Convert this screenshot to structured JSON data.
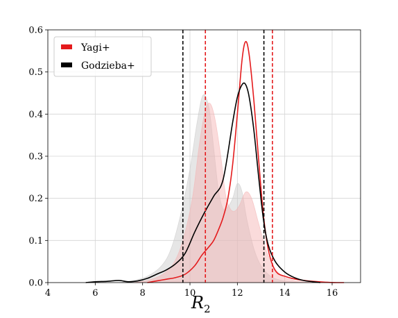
{
  "chart_data": {
    "type": "area",
    "title": "",
    "xlabel": "R",
    "xlabel_subscript": "2",
    "ylabel": "",
    "xlim": [
      4,
      17.2
    ],
    "ylim": [
      0,
      0.6
    ],
    "xticks": [
      4,
      6,
      8,
      10,
      12,
      14,
      16
    ],
    "yticks": [
      0.0,
      0.1,
      0.2,
      0.3,
      0.4,
      0.5,
      0.6
    ],
    "xtick_labels": [
      "4",
      "6",
      "8",
      "10",
      "12",
      "14",
      "16"
    ],
    "ytick_labels": [
      "0.0",
      "0.1",
      "0.2",
      "0.3",
      "0.4",
      "0.5",
      "0.6"
    ],
    "grid": true,
    "legend_position": "top-left",
    "series": [
      {
        "name": "Yagi+",
        "color": "#e41a1c",
        "style": "line",
        "x": [
          8.2,
          8.6,
          9.0,
          9.4,
          9.8,
          10.2,
          10.5,
          10.8,
          11.0,
          11.2,
          11.4,
          11.6,
          11.8,
          12.0,
          12.2,
          12.35,
          12.5,
          12.7,
          12.9,
          13.1,
          13.3,
          13.5,
          13.7,
          14.0,
          14.3,
          14.7,
          15.2,
          15.7,
          16.2,
          16.5
        ],
        "y": [
          0.0,
          0.004,
          0.008,
          0.012,
          0.02,
          0.04,
          0.065,
          0.085,
          0.1,
          0.125,
          0.155,
          0.2,
          0.28,
          0.4,
          0.53,
          0.572,
          0.54,
          0.43,
          0.29,
          0.16,
          0.08,
          0.04,
          0.022,
          0.015,
          0.01,
          0.006,
          0.003,
          0.001,
          0.0,
          0.0
        ]
      },
      {
        "name": "Godzieba+",
        "color": "#000000",
        "style": "line",
        "x": [
          5.6,
          6.0,
          6.5,
          7.0,
          7.4,
          7.8,
          8.2,
          8.6,
          9.0,
          9.4,
          9.8,
          10.2,
          10.6,
          11.0,
          11.4,
          11.8,
          12.0,
          12.2,
          12.35,
          12.5,
          12.7,
          12.9,
          13.1,
          13.3,
          13.6,
          14.0,
          14.4,
          14.8,
          15.2,
          15.5
        ],
        "y": [
          0.0,
          0.002,
          0.003,
          0.005,
          0.002,
          0.004,
          0.01,
          0.02,
          0.03,
          0.045,
          0.07,
          0.12,
          0.165,
          0.205,
          0.245,
          0.38,
          0.44,
          0.47,
          0.47,
          0.44,
          0.36,
          0.25,
          0.15,
          0.09,
          0.05,
          0.025,
          0.012,
          0.005,
          0.002,
          0.0
        ]
      },
      {
        "color": "#c8c8c8",
        "style": "filled",
        "x": [
          7.0,
          7.6,
          8.2,
          8.8,
          9.2,
          9.6,
          10.0,
          10.3,
          10.55,
          10.8,
          11.0,
          11.2,
          11.4,
          11.6,
          11.8,
          12.0,
          12.2,
          12.4,
          12.7,
          13.0,
          13.4,
          13.8,
          14.3,
          14.8
        ],
        "y": [
          0.0,
          0.005,
          0.015,
          0.04,
          0.08,
          0.16,
          0.27,
          0.38,
          0.445,
          0.415,
          0.32,
          0.22,
          0.175,
          0.18,
          0.2,
          0.235,
          0.215,
          0.15,
          0.08,
          0.04,
          0.015,
          0.006,
          0.002,
          0.0
        ]
      },
      {
        "color": "#f4b0b0",
        "style": "filled",
        "x": [
          7.6,
          8.2,
          8.8,
          9.3,
          9.7,
          10.1,
          10.4,
          10.65,
          10.85,
          11.05,
          11.3,
          11.5,
          11.7,
          11.9,
          12.1,
          12.35,
          12.6,
          12.9,
          13.2,
          13.5,
          13.9,
          14.4,
          15.0,
          15.6
        ],
        "y": [
          0.0,
          0.005,
          0.018,
          0.045,
          0.1,
          0.2,
          0.33,
          0.41,
          0.425,
          0.39,
          0.3,
          0.21,
          0.175,
          0.17,
          0.185,
          0.215,
          0.2,
          0.14,
          0.08,
          0.04,
          0.015,
          0.005,
          0.001,
          0.0
        ]
      }
    ],
    "vlines": [
      {
        "x": 9.7,
        "color": "#000000",
        "style": "dashed"
      },
      {
        "x": 13.12,
        "color": "#000000",
        "style": "dashed"
      },
      {
        "x": 10.65,
        "color": "#e41a1c",
        "style": "dashed"
      },
      {
        "x": 13.48,
        "color": "#e41a1c",
        "style": "dashed"
      }
    ]
  }
}
